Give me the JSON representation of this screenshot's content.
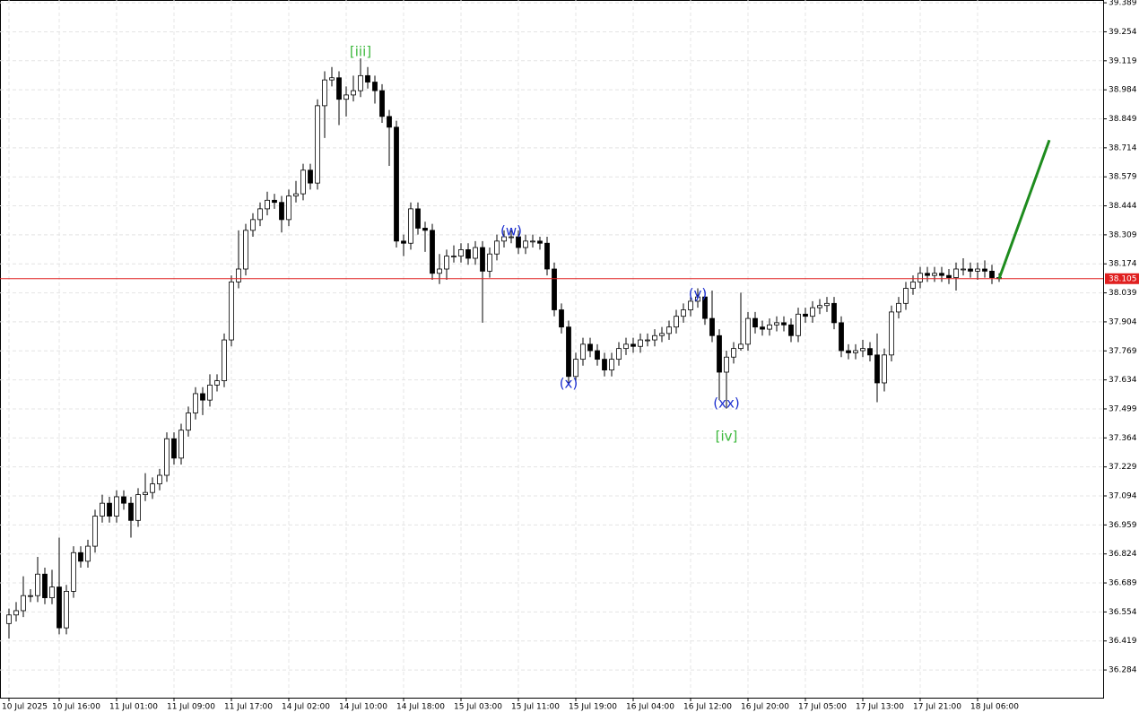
{
  "chart_data": {
    "type": "candlestick",
    "categories": [
      "10 Jul 2025",
      null,
      null,
      null,
      null,
      null,
      null,
      "10 Jul 16:00",
      null,
      null,
      null,
      null,
      null,
      null,
      null,
      "11 Jul 01:00",
      null,
      null,
      null,
      null,
      null,
      null,
      null,
      "11 Jul 09:00",
      null,
      null,
      null,
      null,
      null,
      null,
      null,
      "11 Jul 17:00",
      null,
      null,
      null,
      null,
      null,
      null,
      null,
      "14 Jul 02:00",
      null,
      null,
      null,
      null,
      null,
      null,
      null,
      "14 Jul 10:00",
      null,
      null,
      null,
      null,
      null,
      null,
      null,
      "14 Jul 18:00",
      null,
      null,
      null,
      null,
      null,
      null,
      null,
      "15 Jul 03:00",
      null,
      null,
      null,
      null,
      null,
      null,
      null,
      "15 Jul 11:00",
      null,
      null,
      null,
      null,
      null,
      null,
      null,
      "15 Jul 19:00",
      null,
      null,
      null,
      null,
      null,
      null,
      null,
      "16 Jul 04:00",
      null,
      null,
      null,
      null,
      null,
      null,
      null,
      "16 Jul 12:00",
      null,
      null,
      null,
      null,
      null,
      null,
      null,
      "16 Jul 20:00",
      null,
      null,
      null,
      null,
      null,
      null,
      null,
      "17 Jul 05:00",
      null,
      null,
      null,
      null,
      null,
      null,
      null,
      "17 Jul 13:00",
      null,
      null,
      null,
      null,
      null,
      null,
      null,
      "17 Jul 21:00",
      null,
      null,
      null,
      null,
      null,
      null,
      null,
      "18 Jul 06:00",
      null,
      null,
      null
    ],
    "open": [
      36.5,
      36.54,
      36.56,
      36.63,
      36.63,
      36.73,
      36.62,
      36.67,
      36.48,
      36.65,
      36.83,
      36.79,
      36.86,
      37.0,
      37.06,
      37.0,
      37.09,
      37.06,
      36.98,
      37.1,
      37.11,
      37.15,
      37.19,
      37.36,
      37.27,
      37.4,
      37.48,
      37.57,
      37.54,
      37.61,
      37.63,
      37.82,
      38.09,
      38.15,
      38.33,
      38.38,
      38.43,
      38.47,
      38.46,
      38.38,
      38.49,
      38.5,
      38.61,
      38.55,
      38.91,
      39.03,
      39.04,
      38.94,
      38.96,
      38.98,
      39.05,
      39.02,
      38.98,
      38.86,
      38.81,
      38.28,
      38.27,
      38.43,
      38.34,
      38.33,
      38.13,
      38.15,
      38.21,
      38.21,
      38.24,
      38.2,
      38.25,
      38.14,
      38.22,
      38.28,
      38.3,
      38.3,
      38.25,
      38.28,
      38.28,
      38.27,
      38.15,
      37.96,
      37.88,
      37.65,
      37.73,
      37.8,
      37.77,
      37.73,
      37.68,
      37.73,
      37.78,
      37.8,
      37.79,
      37.82,
      37.82,
      37.84,
      37.85,
      37.88,
      37.93,
      37.96,
      38.0,
      38.02,
      37.92,
      37.84,
      37.67,
      37.74,
      37.78,
      37.8,
      37.92,
      37.88,
      37.87,
      37.89,
      37.9,
      37.89,
      37.84,
      37.94,
      37.93,
      37.97,
      37.98,
      37.99,
      37.9,
      37.77,
      37.76,
      37.77,
      37.78,
      37.75,
      37.62,
      37.75,
      37.95,
      37.99,
      38.06,
      38.09,
      38.13,
      38.12,
      38.13,
      38.12,
      38.11,
      38.15,
      38.15,
      38.14,
      38.15,
      38.14,
      38.11
    ],
    "high": [
      36.57,
      36.6,
      36.72,
      36.66,
      36.81,
      36.76,
      36.75,
      36.9,
      36.68,
      36.86,
      36.86,
      36.89,
      37.03,
      37.1,
      37.09,
      37.12,
      37.12,
      37.09,
      37.13,
      37.2,
      37.18,
      37.22,
      37.39,
      37.39,
      37.43,
      37.51,
      37.6,
      37.6,
      37.66,
      37.66,
      37.85,
      38.12,
      38.33,
      38.36,
      38.41,
      38.46,
      38.51,
      38.5,
      38.49,
      38.52,
      38.56,
      38.64,
      38.64,
      38.94,
      39.07,
      39.09,
      39.07,
      39.0,
      39.05,
      39.13,
      39.09,
      39.05,
      39.01,
      38.89,
      38.84,
      38.31,
      38.46,
      38.46,
      38.37,
      38.36,
      38.22,
      38.24,
      38.26,
      38.27,
      38.27,
      38.28,
      38.28,
      38.25,
      38.31,
      38.33,
      38.33,
      38.33,
      38.31,
      38.31,
      38.3,
      38.3,
      38.18,
      37.99,
      37.91,
      37.76,
      37.83,
      37.83,
      37.8,
      37.76,
      37.76,
      37.81,
      37.83,
      37.83,
      37.85,
      37.85,
      37.87,
      37.88,
      37.91,
      37.96,
      37.99,
      38.05,
      38.06,
      38.05,
      38.05,
      37.87,
      37.77,
      37.81,
      38.04,
      37.95,
      37.95,
      37.91,
      37.92,
      37.93,
      37.93,
      37.92,
      37.97,
      37.97,
      38.0,
      38.01,
      38.02,
      38.02,
      37.93,
      37.8,
      37.8,
      37.82,
      37.81,
      37.85,
      37.78,
      37.98,
      38.02,
      38.09,
      38.12,
      38.16,
      38.16,
      38.16,
      38.16,
      38.15,
      38.18,
      38.2,
      38.18,
      38.18,
      38.19,
      38.17,
      38.13
    ],
    "low": [
      36.43,
      36.51,
      36.53,
      36.6,
      36.6,
      36.59,
      36.59,
      36.45,
      36.45,
      36.62,
      36.76,
      36.76,
      36.83,
      36.97,
      36.97,
      36.97,
      37.03,
      36.9,
      36.95,
      37.07,
      37.08,
      37.12,
      37.16,
      37.24,
      37.24,
      37.37,
      37.45,
      37.47,
      37.51,
      37.58,
      37.6,
      37.79,
      38.06,
      38.12,
      38.3,
      38.35,
      38.4,
      38.43,
      38.32,
      38.35,
      38.46,
      38.47,
      38.52,
      38.52,
      38.76,
      39.0,
      38.82,
      38.86,
      38.93,
      38.95,
      38.99,
      38.92,
      38.83,
      38.63,
      38.25,
      38.21,
      38.24,
      38.31,
      38.23,
      38.1,
      38.08,
      38.1,
      38.18,
      38.18,
      38.17,
      38.17,
      37.9,
      38.11,
      38.19,
      38.25,
      38.27,
      38.22,
      38.22,
      38.25,
      38.24,
      38.12,
      37.93,
      37.85,
      37.61,
      37.62,
      37.7,
      37.74,
      37.7,
      37.65,
      37.65,
      37.7,
      37.75,
      37.76,
      37.76,
      37.79,
      37.79,
      37.81,
      37.82,
      37.85,
      37.9,
      37.93,
      37.97,
      37.89,
      37.81,
      37.54,
      37.5,
      37.71,
      37.77,
      37.77,
      37.85,
      37.84,
      37.84,
      37.86,
      37.86,
      37.81,
      37.81,
      37.9,
      37.9,
      37.94,
      37.95,
      37.87,
      37.74,
      37.73,
      37.73,
      37.74,
      37.72,
      37.53,
      37.58,
      37.72,
      37.92,
      37.96,
      38.03,
      38.06,
      38.09,
      38.09,
      38.09,
      38.08,
      38.05,
      38.12,
      38.11,
      38.1,
      38.11,
      38.08,
      38.09
    ],
    "close": [
      36.54,
      36.56,
      36.63,
      36.63,
      36.73,
      36.62,
      36.67,
      36.48,
      36.65,
      36.83,
      36.79,
      36.86,
      37.0,
      37.06,
      37.0,
      37.09,
      37.06,
      36.98,
      37.1,
      37.11,
      37.15,
      37.19,
      37.36,
      37.27,
      37.4,
      37.48,
      37.57,
      37.54,
      37.61,
      37.63,
      37.82,
      38.09,
      38.15,
      38.33,
      38.38,
      38.43,
      38.47,
      38.46,
      38.38,
      38.49,
      38.5,
      38.61,
      38.55,
      38.91,
      39.03,
      39.04,
      38.94,
      38.96,
      38.98,
      39.05,
      39.02,
      38.98,
      38.86,
      38.81,
      38.28,
      38.27,
      38.43,
      38.34,
      38.33,
      38.13,
      38.15,
      38.21,
      38.21,
      38.24,
      38.2,
      38.25,
      38.14,
      38.22,
      38.28,
      38.3,
      38.3,
      38.25,
      38.28,
      38.28,
      38.27,
      38.15,
      37.96,
      37.88,
      37.65,
      37.73,
      37.8,
      37.77,
      37.73,
      37.68,
      37.73,
      37.78,
      37.8,
      37.79,
      37.82,
      37.82,
      37.84,
      37.85,
      37.88,
      37.93,
      37.96,
      38.0,
      38.02,
      37.92,
      37.84,
      37.67,
      37.74,
      37.78,
      37.8,
      37.92,
      37.88,
      37.87,
      37.89,
      37.9,
      37.89,
      37.84,
      37.94,
      37.93,
      37.97,
      37.98,
      37.99,
      37.9,
      37.77,
      37.76,
      37.77,
      37.78,
      37.75,
      37.62,
      37.75,
      37.95,
      37.99,
      38.06,
      38.09,
      38.13,
      38.12,
      38.13,
      38.12,
      38.11,
      38.15,
      38.15,
      38.14,
      38.15,
      38.14,
      38.11,
      38.105
    ],
    "up_color": "#ffffff",
    "down_color": "#000000",
    "ylim": [
      36.155,
      39.402
    ],
    "yticks": [
      39.389,
      39.254,
      39.119,
      38.984,
      38.849,
      38.714,
      38.579,
      38.444,
      38.309,
      38.174,
      38.039,
      37.904,
      37.769,
      37.634,
      37.499,
      37.364,
      37.229,
      37.094,
      36.959,
      36.824,
      36.689,
      36.554,
      36.419,
      36.284
    ],
    "grid": true,
    "current_price": 38.105,
    "current_price_color": "#e02020",
    "projection": {
      "color": "#1e8c1e",
      "values": [
        38.105,
        38.75
      ]
    },
    "annotations": [
      {
        "text": "[iii]",
        "color": "#3cb83c"
      },
      {
        "text": "(w)",
        "color": "#1c2fd0"
      },
      {
        "text": "(x)",
        "color": "#1c2fd0"
      },
      {
        "text": "(y)",
        "color": "#1c2fd0"
      },
      {
        "text": "(xx)",
        "color": "#1c2fd0"
      },
      {
        "text": "[iv]",
        "color": "#3cb83c"
      }
    ]
  }
}
